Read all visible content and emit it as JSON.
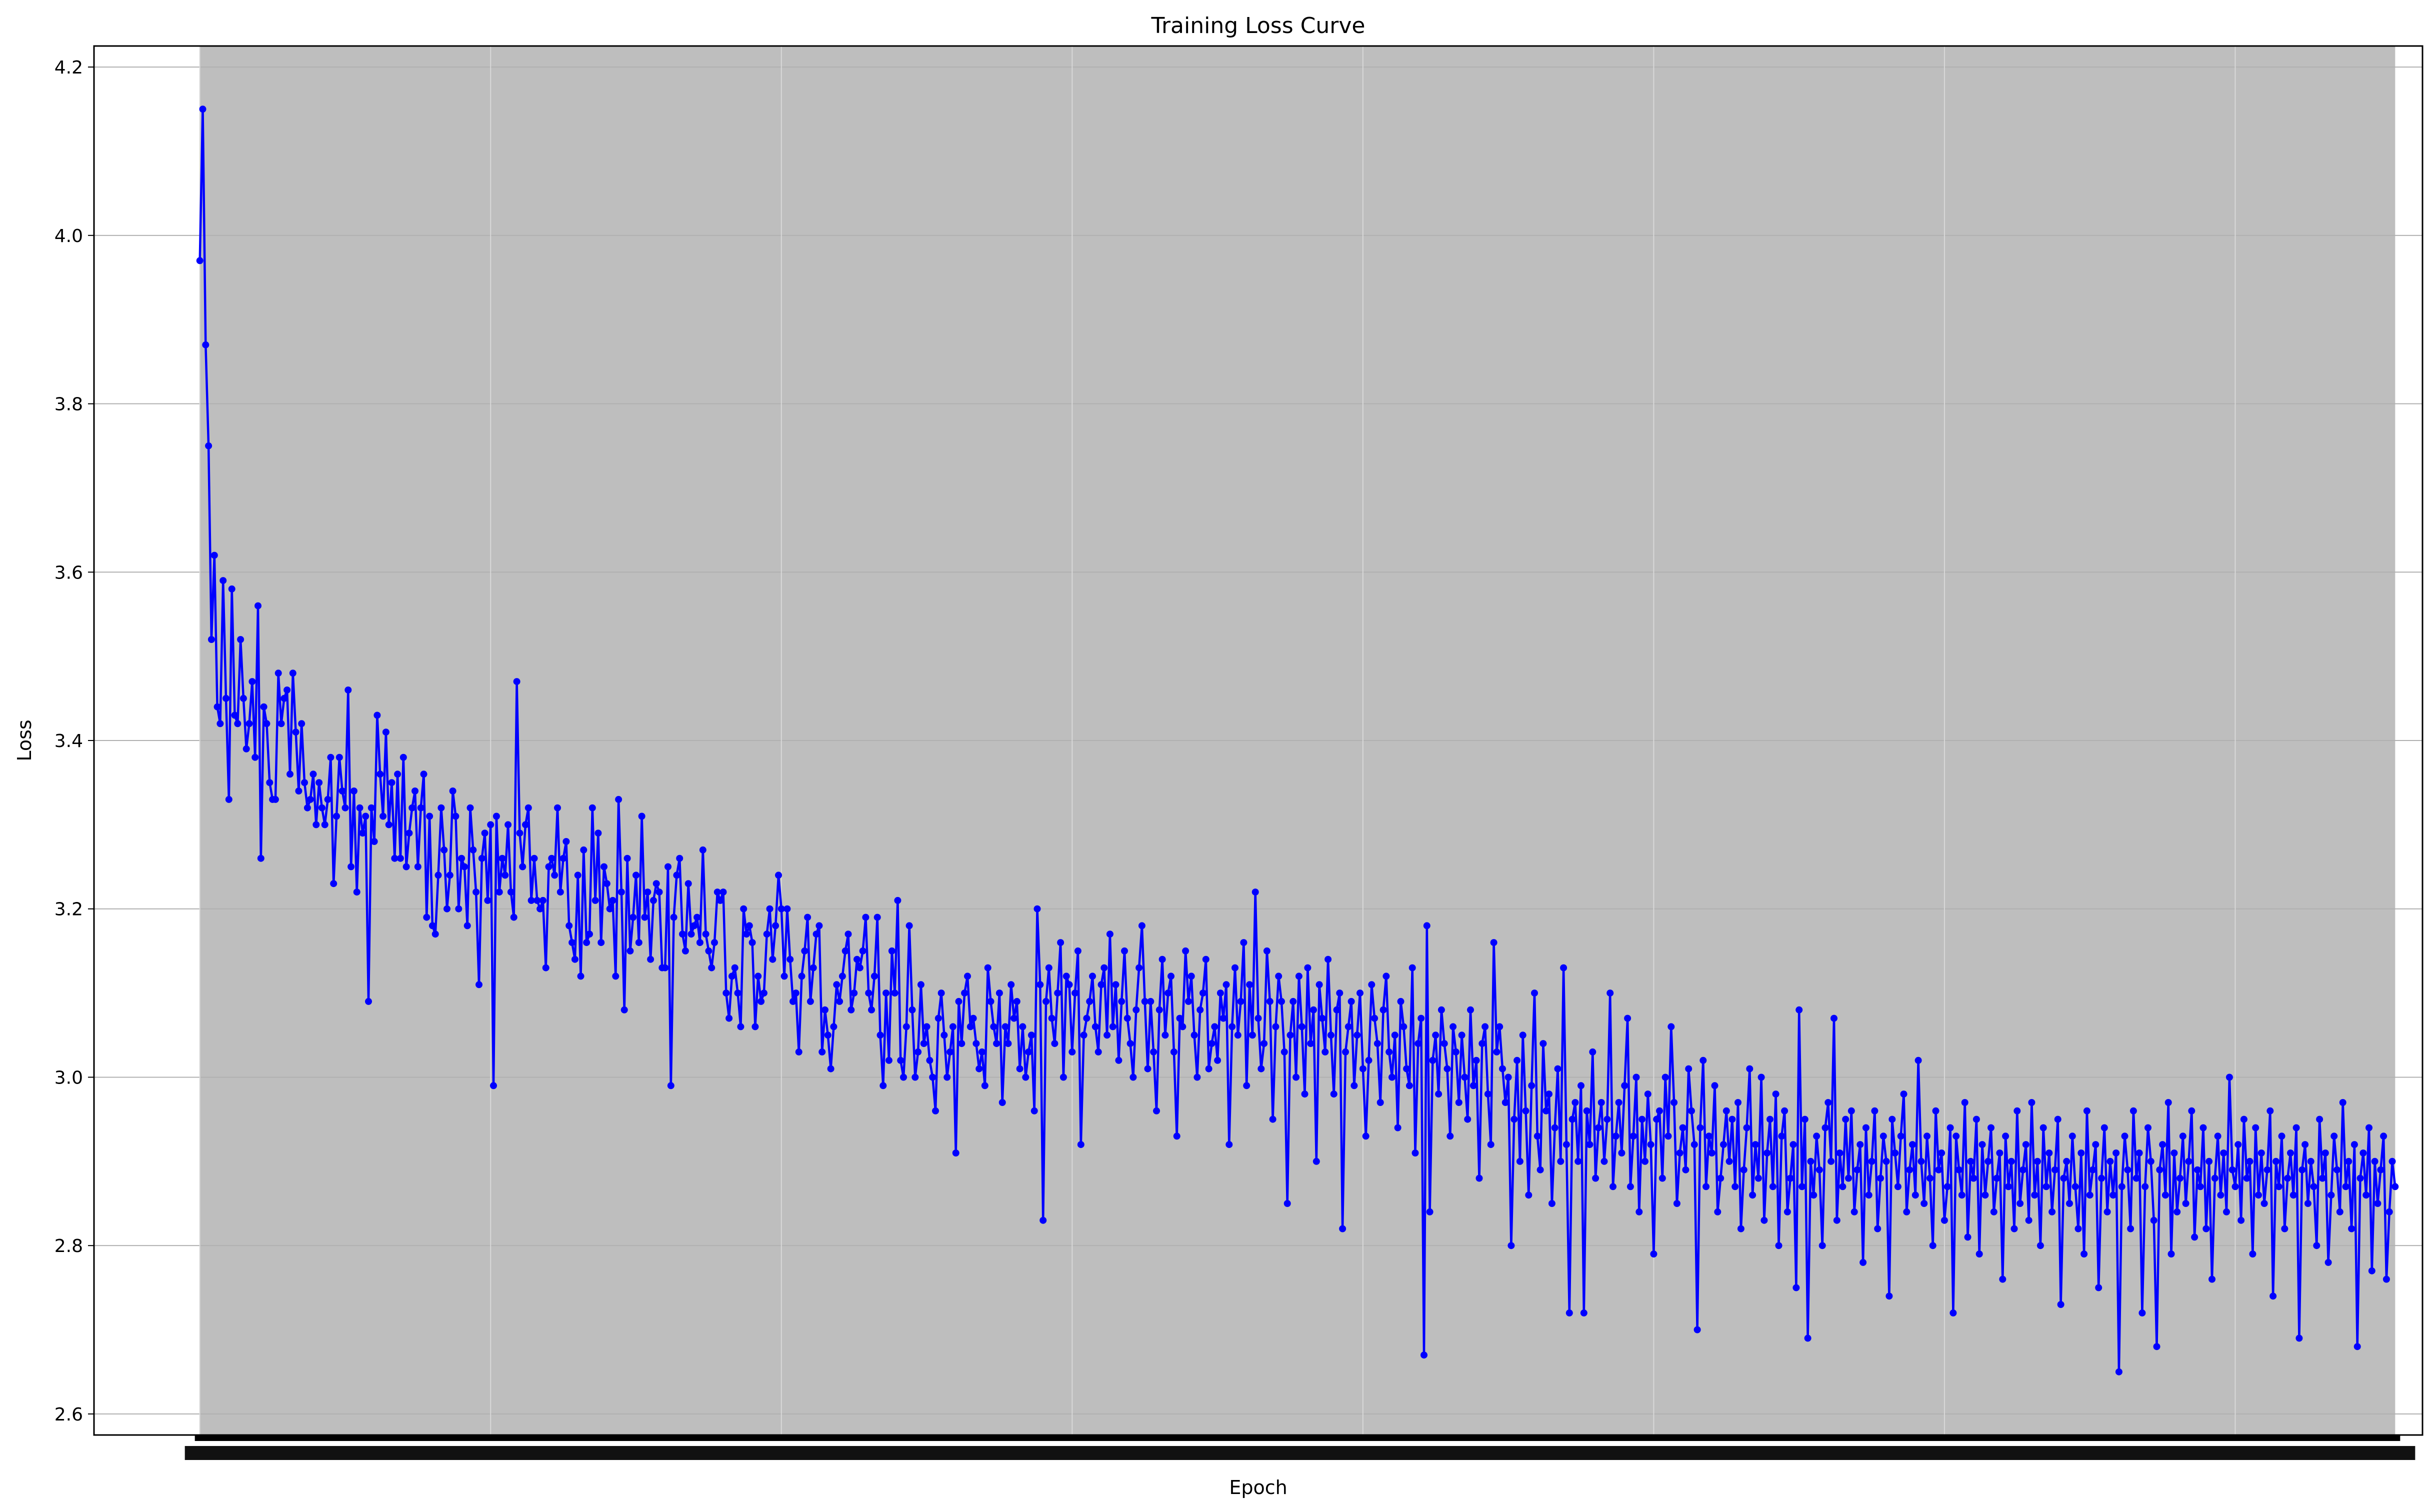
{
  "chart_data": {
    "type": "line",
    "title": "Training Loss Curve",
    "xlabel": "Epoch",
    "ylabel": "Loss",
    "ylim": [
      2.575,
      4.225
    ],
    "yticks": [
      2.6,
      2.8,
      3.0,
      3.2,
      3.4,
      3.6,
      3.8,
      4.0,
      4.2
    ],
    "ytick_labels": [
      "2.6",
      "2.8",
      "3.0",
      "3.2",
      "3.4",
      "3.6",
      "3.8",
      "4.0",
      "4.2"
    ],
    "x_range": [
      1,
      729
    ],
    "xlim": [
      -35.4,
      765.4
    ],
    "x_major_gridlines": [
      1,
      101,
      201,
      301,
      401,
      501,
      601,
      701
    ],
    "x_tick_labels_note": "x tick labels are printed at every epoch and overlap into an unreadable band",
    "grid": true,
    "legend": "none",
    "colors": {
      "line": "#0000ff",
      "plot_background": "#bebebe",
      "grid": "#d8d8d8"
    },
    "series": [
      {
        "x_start": 1,
        "x_step": 1,
        "values": [
          3.97,
          4.15,
          3.87,
          3.75,
          3.52,
          3.62,
          3.44,
          3.42,
          3.59,
          3.45,
          3.33,
          3.58,
          3.43,
          3.42,
          3.52,
          3.45,
          3.39,
          3.42,
          3.47,
          3.38,
          3.56,
          3.26,
          3.44,
          3.42,
          3.35,
          3.33,
          3.33,
          3.48,
          3.42,
          3.45,
          3.46,
          3.36,
          3.48,
          3.41,
          3.34,
          3.42,
          3.35,
          3.32,
          3.33,
          3.36,
          3.3,
          3.35,
          3.32,
          3.3,
          3.33,
          3.38,
          3.23,
          3.31,
          3.38,
          3.34,
          3.32,
          3.46,
          3.25,
          3.34,
          3.22,
          3.32,
          3.29,
          3.31,
          3.09,
          3.32,
          3.28,
          3.43,
          3.36,
          3.31,
          3.41,
          3.3,
          3.35,
          3.26,
          3.36,
          3.26,
          3.38,
          3.25,
          3.29,
          3.32,
          3.34,
          3.25,
          3.32,
          3.36,
          3.19,
          3.31,
          3.18,
          3.17,
          3.24,
          3.32,
          3.27,
          3.2,
          3.24,
          3.34,
          3.31,
          3.2,
          3.26,
          3.25,
          3.18,
          3.32,
          3.27,
          3.22,
          3.11,
          3.26,
          3.29,
          3.21,
          3.3,
          2.99,
          3.31,
          3.22,
          3.26,
          3.24,
          3.3,
          3.22,
          3.19,
          3.47,
          3.29,
          3.25,
          3.3,
          3.32,
          3.21,
          3.26,
          3.21,
          3.2,
          3.21,
          3.13,
          3.25,
          3.26,
          3.24,
          3.32,
          3.22,
          3.26,
          3.28,
          3.18,
          3.16,
          3.14,
          3.24,
          3.12,
          3.27,
          3.16,
          3.17,
          3.32,
          3.21,
          3.29,
          3.16,
          3.25,
          3.23,
          3.2,
          3.21,
          3.12,
          3.33,
          3.22,
          3.08,
          3.26,
          3.15,
          3.19,
          3.24,
          3.16,
          3.31,
          3.19,
          3.22,
          3.14,
          3.21,
          3.23,
          3.22,
          3.13,
          3.13,
          3.25,
          2.99,
          3.19,
          3.24,
          3.26,
          3.17,
          3.15,
          3.23,
          3.17,
          3.18,
          3.19,
          3.16,
          3.27,
          3.17,
          3.15,
          3.13,
          3.16,
          3.22,
          3.21,
          3.22,
          3.1,
          3.07,
          3.12,
          3.13,
          3.1,
          3.06,
          3.2,
          3.17,
          3.18,
          3.16,
          3.06,
          3.12,
          3.09,
          3.1,
          3.17,
          3.2,
          3.14,
          3.18,
          3.24,
          3.2,
          3.12,
          3.2,
          3.14,
          3.09,
          3.1,
          3.03,
          3.12,
          3.15,
          3.19,
          3.09,
          3.13,
          3.17,
          3.18,
          3.03,
          3.08,
          3.05,
          3.01,
          3.06,
          3.11,
          3.09,
          3.12,
          3.15,
          3.17,
          3.08,
          3.1,
          3.14,
          3.13,
          3.15,
          3.19,
          3.1,
          3.08,
          3.12,
          3.19,
          3.05,
          2.99,
          3.1,
          3.02,
          3.15,
          3.1,
          3.21,
          3.02,
          3.0,
          3.06,
          3.18,
          3.08,
          3.0,
          3.03,
          3.11,
          3.04,
          3.06,
          3.02,
          3.0,
          2.96,
          3.07,
          3.1,
          3.05,
          3.0,
          3.03,
          3.06,
          2.91,
          3.09,
          3.04,
          3.1,
          3.12,
          3.06,
          3.07,
          3.04,
          3.01,
          3.03,
          2.99,
          3.13,
          3.09,
          3.06,
          3.04,
          3.1,
          2.97,
          3.06,
          3.04,
          3.11,
          3.07,
          3.09,
          3.01,
          3.06,
          3.0,
          3.03,
          3.05,
          2.96,
          3.2,
          3.11,
          2.83,
          3.09,
          3.13,
          3.07,
          3.04,
          3.1,
          3.16,
          3.0,
          3.12,
          3.11,
          3.03,
          3.1,
          3.15,
          2.92,
          3.05,
          3.07,
          3.09,
          3.12,
          3.06,
          3.03,
          3.11,
          3.13,
          3.05,
          3.17,
          3.06,
          3.11,
          3.02,
          3.09,
          3.15,
          3.07,
          3.04,
          3.0,
          3.08,
          3.13,
          3.18,
          3.09,
          3.01,
          3.09,
          3.03,
          2.96,
          3.08,
          3.14,
          3.05,
          3.1,
          3.12,
          3.03,
          2.93,
          3.07,
          3.06,
          3.15,
          3.09,
          3.12,
          3.05,
          3.0,
          3.08,
          3.1,
          3.14,
          3.01,
          3.04,
          3.06,
          3.02,
          3.1,
          3.07,
          3.11,
          2.92,
          3.06,
          3.13,
          3.05,
          3.09,
          3.16,
          2.99,
          3.11,
          3.05,
          3.22,
          3.07,
          3.01,
          3.04,
          3.15,
          3.09,
          2.95,
          3.06,
          3.12,
          3.09,
          3.03,
          2.85,
          3.05,
          3.09,
          3.0,
          3.12,
          3.06,
          2.98,
          3.13,
          3.04,
          3.08,
          2.9,
          3.11,
          3.07,
          3.03,
          3.14,
          3.05,
          2.98,
          3.08,
          3.1,
          2.82,
          3.03,
          3.06,
          3.09,
          2.99,
          3.05,
          3.1,
          3.01,
          2.93,
          3.02,
          3.11,
          3.07,
          3.04,
          2.97,
          3.08,
          3.12,
          3.03,
          3.0,
          3.05,
          2.94,
          3.09,
          3.06,
          3.01,
          2.99,
          3.13,
          2.91,
          3.04,
          3.07,
          2.67,
          3.18,
          2.84,
          3.02,
          3.05,
          2.98,
          3.08,
          3.04,
          3.01,
          2.93,
          3.06,
          3.03,
          2.97,
          3.05,
          3.0,
          2.95,
          3.08,
          2.99,
          3.02,
          2.88,
          3.04,
          3.06,
          2.98,
          2.92,
          3.16,
          3.03,
          3.06,
          3.01,
          2.97,
          3.0,
          2.8,
          2.95,
          3.02,
          2.9,
          3.05,
          2.96,
          2.86,
          2.99,
          3.1,
          2.93,
          2.89,
          3.04,
          2.96,
          2.98,
          2.85,
          2.94,
          3.01,
          2.9,
          3.13,
          2.92,
          2.72,
          2.95,
          2.97,
          2.9,
          2.99,
          2.72,
          2.96,
          2.92,
          3.03,
          2.88,
          2.94,
          2.97,
          2.9,
          2.95,
          3.1,
          2.87,
          2.93,
          2.97,
          2.91,
          2.99,
          3.07,
          2.87,
          2.93,
          3.0,
          2.84,
          2.95,
          2.9,
          2.98,
          2.92,
          2.79,
          2.95,
          2.96,
          2.88,
          3.0,
          2.93,
          3.06,
          2.97,
          2.85,
          2.91,
          2.94,
          2.89,
          3.01,
          2.96,
          2.92,
          2.7,
          2.94,
          3.02,
          2.87,
          2.93,
          2.91,
          2.99,
          2.84,
          2.88,
          2.92,
          2.96,
          2.9,
          2.95,
          2.87,
          2.97,
          2.82,
          2.89,
          2.94,
          3.01,
          2.86,
          2.92,
          2.88,
          3.0,
          2.83,
          2.91,
          2.95,
          2.87,
          2.98,
          2.8,
          2.93,
          2.96,
          2.84,
          2.88,
          2.92,
          2.75,
          3.08,
          2.87,
          2.95,
          2.69,
          2.9,
          2.86,
          2.93,
          2.89,
          2.8,
          2.94,
          2.97,
          2.9,
          3.07,
          2.83,
          2.91,
          2.87,
          2.95,
          2.88,
          2.96,
          2.84,
          2.89,
          2.92,
          2.78,
          2.94,
          2.86,
          2.9,
          2.96,
          2.82,
          2.88,
          2.93,
          2.9,
          2.74,
          2.95,
          2.91,
          2.87,
          2.93,
          2.98,
          2.84,
          2.89,
          2.92,
          2.86,
          3.02,
          2.9,
          2.85,
          2.93,
          2.88,
          2.8,
          2.96,
          2.89,
          2.91,
          2.83,
          2.87,
          2.94,
          2.72,
          2.93,
          2.89,
          2.86,
          2.97,
          2.81,
          2.9,
          2.88,
          2.95,
          2.79,
          2.92,
          2.86,
          2.9,
          2.94,
          2.84,
          2.88,
          2.91,
          2.76,
          2.93,
          2.87,
          2.9,
          2.82,
          2.96,
          2.85,
          2.89,
          2.92,
          2.83,
          2.97,
          2.86,
          2.9,
          2.8,
          2.94,
          2.87,
          2.91,
          2.84,
          2.89,
          2.95,
          2.73,
          2.88,
          2.9,
          2.85,
          2.93,
          2.87,
          2.82,
          2.91,
          2.79,
          2.96,
          2.86,
          2.89,
          2.92,
          2.75,
          2.88,
          2.94,
          2.84,
          2.9,
          2.86,
          2.91,
          2.65,
          2.87,
          2.93,
          2.89,
          2.82,
          2.96,
          2.88,
          2.91,
          2.72,
          2.87,
          2.94,
          2.9,
          2.83,
          2.68,
          2.89,
          2.92,
          2.86,
          2.97,
          2.79,
          2.91,
          2.84,
          2.88,
          2.93,
          2.85,
          2.9,
          2.96,
          2.81,
          2.89,
          2.87,
          2.94,
          2.82,
          2.9,
          2.76,
          2.88,
          2.93,
          2.86,
          2.91,
          2.84,
          3.0,
          2.89,
          2.87,
          2.92,
          2.83,
          2.95,
          2.88,
          2.9,
          2.79,
          2.94,
          2.86,
          2.91,
          2.85,
          2.89,
          2.96,
          2.74,
          2.9,
          2.87,
          2.93,
          2.82,
          2.88,
          2.91,
          2.86,
          2.94,
          2.69,
          2.89,
          2.92,
          2.85,
          2.9,
          2.87,
          2.8,
          2.95,
          2.88,
          2.91,
          2.78,
          2.86,
          2.93,
          2.89,
          2.84,
          2.97,
          2.87,
          2.9,
          2.82,
          2.92,
          2.68,
          2.88,
          2.91,
          2.86,
          2.94,
          2.77,
          2.9,
          2.85,
          2.89,
          2.93,
          2.76,
          2.84,
          2.9,
          2.87
        ]
      }
    ]
  }
}
